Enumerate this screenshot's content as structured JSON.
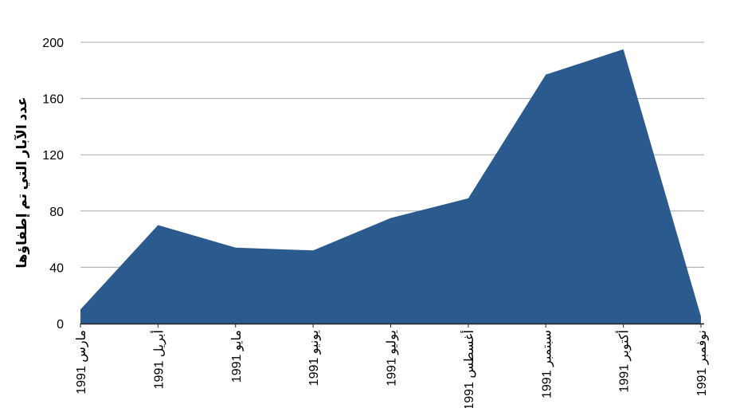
{
  "chart_data": {
    "type": "area",
    "title": "",
    "xlabel": "",
    "ylabel": "عدد الآبار التي تم إطفاؤها",
    "categories": [
      "مارس 1991",
      "أبريل 1991",
      "مايو 1991",
      "يونيو 1991",
      "يوليو 1991",
      "أغسطس 1991",
      "سبتمبر 1991",
      "أكتوبر 1991",
      "نوفمبر 1991"
    ],
    "values": [
      10,
      70,
      54,
      52,
      75,
      89,
      177,
      195,
      5
    ],
    "ylim": [
      0,
      200
    ],
    "yticks": [
      0,
      40,
      80,
      120,
      160,
      200
    ],
    "grid": true,
    "legend": "none",
    "color": "#2a5a8e"
  }
}
